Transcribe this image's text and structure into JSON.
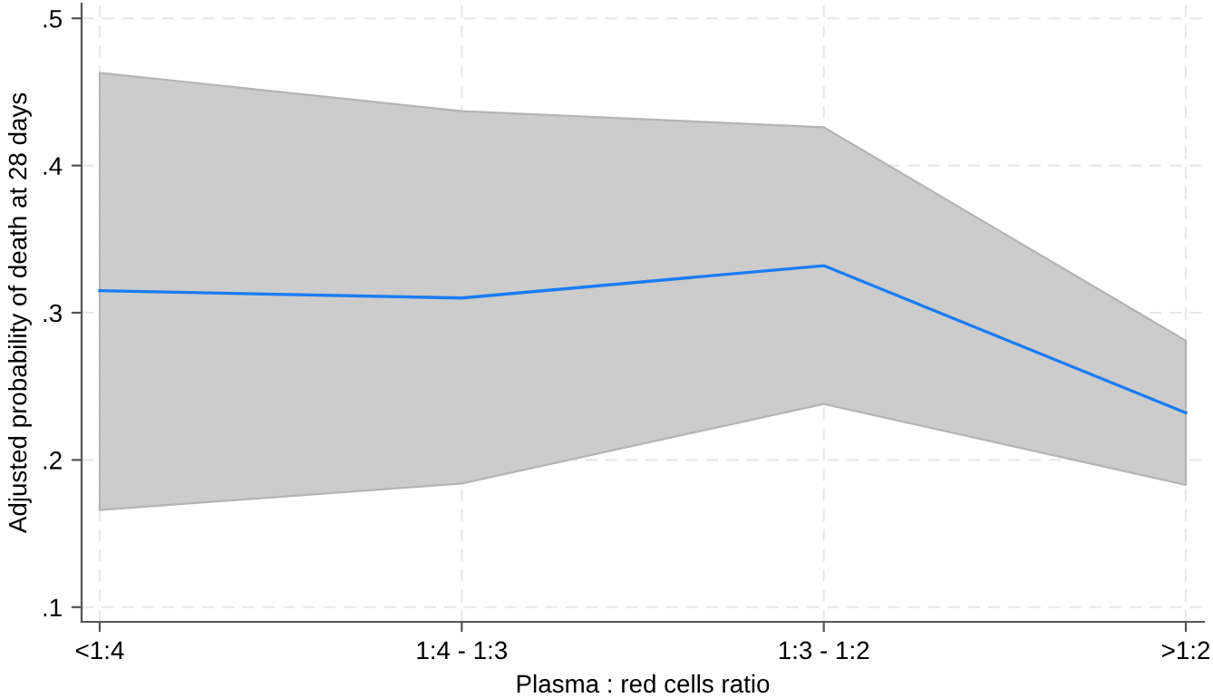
{
  "chart_data": {
    "type": "line",
    "xlabel": "Plasma : red cells ratio",
    "ylabel": "Adjusted probability of death at 28 days",
    "categories": [
      "<1:4",
      "1:4 - 1:3",
      "1:3 - 1:2",
      ">1:2"
    ],
    "series": [
      {
        "color": "#1a7cf5",
        "values": [
          0.315,
          0.31,
          0.332,
          0.232
        ],
        "lower": [
          0.166,
          0.184,
          0.238,
          0.183
        ],
        "upper": [
          0.463,
          0.437,
          0.426,
          0.281
        ]
      }
    ],
    "ylim": [
      0.09,
      0.51
    ],
    "yticks": [
      {
        "value": 0.1,
        "label": ".1"
      },
      {
        "value": 0.2,
        "label": ".2"
      },
      {
        "value": 0.3,
        "label": ".3"
      },
      {
        "value": 0.4,
        "label": ".4"
      },
      {
        "value": 0.5,
        "label": ".5"
      }
    ],
    "grid": true,
    "marker": "none",
    "line_style": "solid"
  }
}
